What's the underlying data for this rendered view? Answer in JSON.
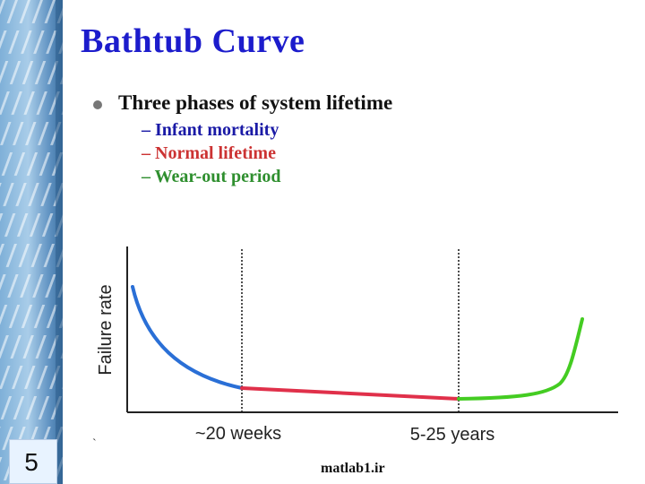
{
  "slide": {
    "title": "Bathtub Curve",
    "bullet": "Three phases of system lifetime",
    "subpoints": [
      "– Infant mortality",
      "– Normal lifetime",
      "– Wear-out period"
    ],
    "slide_number": "5",
    "footer": "matlab1.ir"
  },
  "colors": {
    "title": "#1c1ccc",
    "infant": "#2a6fd6",
    "normal": "#e0304a",
    "wearout": "#44cc22"
  },
  "chart_data": {
    "type": "line",
    "ylabel": "Failure rate",
    "x_labels": [
      "~20 weeks",
      "5-25 years"
    ],
    "phases": [
      {
        "name": "Infant mortality",
        "color": "#2a6fd6"
      },
      {
        "name": "Normal lifetime",
        "color": "#e0304a"
      },
      {
        "name": "Wear-out period",
        "color": "#44cc22"
      }
    ],
    "grid": false
  }
}
